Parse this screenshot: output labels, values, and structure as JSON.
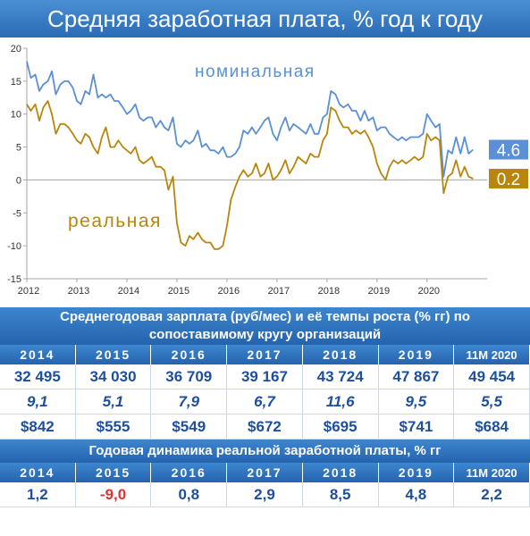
{
  "title": "Средняя заработная плата, % год к году",
  "chart_data": {
    "type": "line",
    "title": "Средняя заработная плата, % год к году",
    "ylim": [
      -15,
      20
    ],
    "yticks": [
      -15,
      -10,
      -5,
      0,
      5,
      10,
      15,
      20
    ],
    "xlim": [
      2012,
      2021.2
    ],
    "xticks": [
      2012,
      2013,
      2014,
      2015,
      2016,
      2017,
      2018,
      2019,
      2020
    ],
    "grid": false,
    "series": [
      {
        "name": "номинальная",
        "color": "#5b8fd6",
        "end_label": "4.6",
        "x": [
          2012.0,
          2012.08,
          2012.17,
          2012.25,
          2012.33,
          2012.42,
          2012.5,
          2012.58,
          2012.67,
          2012.75,
          2012.83,
          2012.92,
          2013.0,
          2013.08,
          2013.17,
          2013.25,
          2013.33,
          2013.42,
          2013.5,
          2013.58,
          2013.67,
          2013.75,
          2013.83,
          2013.92,
          2014.0,
          2014.08,
          2014.17,
          2014.25,
          2014.33,
          2014.42,
          2014.5,
          2014.58,
          2014.67,
          2014.75,
          2014.83,
          2014.92,
          2015.0,
          2015.08,
          2015.17,
          2015.25,
          2015.33,
          2015.42,
          2015.5,
          2015.58,
          2015.67,
          2015.75,
          2015.83,
          2015.92,
          2016.0,
          2016.08,
          2016.17,
          2016.25,
          2016.33,
          2016.42,
          2016.5,
          2016.58,
          2016.67,
          2016.75,
          2016.83,
          2016.92,
          2017.0,
          2017.08,
          2017.17,
          2017.25,
          2017.33,
          2017.42,
          2017.5,
          2017.58,
          2017.67,
          2017.75,
          2017.83,
          2017.92,
          2018.0,
          2018.08,
          2018.17,
          2018.25,
          2018.33,
          2018.42,
          2018.5,
          2018.58,
          2018.67,
          2018.75,
          2018.83,
          2018.92,
          2019.0,
          2019.08,
          2019.17,
          2019.25,
          2019.33,
          2019.42,
          2019.5,
          2019.58,
          2019.67,
          2019.75,
          2019.83,
          2019.92,
          2020.0,
          2020.08,
          2020.17,
          2020.25,
          2020.33,
          2020.42,
          2020.5,
          2020.58,
          2020.67,
          2020.75,
          2020.83,
          2020.92
        ],
        "y": [
          18.0,
          15.5,
          16.0,
          13.5,
          14.5,
          15.0,
          16.5,
          13.0,
          14.5,
          15.0,
          15.0,
          14.0,
          12.0,
          11.5,
          13.5,
          13.0,
          16.0,
          12.5,
          13.0,
          12.5,
          13.0,
          12.0,
          12.0,
          11.0,
          10.0,
          10.5,
          11.5,
          9.5,
          9.0,
          9.5,
          9.5,
          8.0,
          9.0,
          8.0,
          7.5,
          9.5,
          5.5,
          5.0,
          6.0,
          5.5,
          6.0,
          7.5,
          5.0,
          5.5,
          4.5,
          4.5,
          4.0,
          5.0,
          3.5,
          3.5,
          4.0,
          5.0,
          7.5,
          7.0,
          8.0,
          7.0,
          8.0,
          9.0,
          9.5,
          7.0,
          6.0,
          8.0,
          9.5,
          7.5,
          8.5,
          8.0,
          7.5,
          7.0,
          8.5,
          7.0,
          7.0,
          9.5,
          10.0,
          13.5,
          13.0,
          11.5,
          11.0,
          11.5,
          10.5,
          10.5,
          9.0,
          10.5,
          9.0,
          9.5,
          7.5,
          8.0,
          8.0,
          7.0,
          6.5,
          6.0,
          6.5,
          6.0,
          6.5,
          6.5,
          6.5,
          7.0,
          10.0,
          9.0,
          8.0,
          8.5,
          0.5,
          4.5,
          4.0,
          6.5,
          4.0,
          6.5,
          4.0,
          4.6
        ]
      },
      {
        "name": "реальная",
        "color": "#b8860b",
        "end_label": "0.2",
        "x": [
          2012.0,
          2012.08,
          2012.17,
          2012.25,
          2012.33,
          2012.42,
          2012.5,
          2012.58,
          2012.67,
          2012.75,
          2012.83,
          2012.92,
          2013.0,
          2013.08,
          2013.17,
          2013.25,
          2013.33,
          2013.42,
          2013.5,
          2013.58,
          2013.67,
          2013.75,
          2013.83,
          2013.92,
          2014.0,
          2014.08,
          2014.17,
          2014.25,
          2014.33,
          2014.42,
          2014.5,
          2014.58,
          2014.67,
          2014.75,
          2014.83,
          2014.92,
          2015.0,
          2015.08,
          2015.17,
          2015.25,
          2015.33,
          2015.42,
          2015.5,
          2015.58,
          2015.67,
          2015.75,
          2015.83,
          2015.92,
          2016.0,
          2016.08,
          2016.17,
          2016.25,
          2016.33,
          2016.42,
          2016.5,
          2016.58,
          2016.67,
          2016.75,
          2016.83,
          2016.92,
          2017.0,
          2017.08,
          2017.17,
          2017.25,
          2017.33,
          2017.42,
          2017.5,
          2017.58,
          2017.67,
          2017.75,
          2017.83,
          2017.92,
          2018.0,
          2018.08,
          2018.17,
          2018.25,
          2018.33,
          2018.42,
          2018.5,
          2018.58,
          2018.67,
          2018.75,
          2018.83,
          2018.92,
          2019.0,
          2019.08,
          2019.17,
          2019.25,
          2019.33,
          2019.42,
          2019.5,
          2019.58,
          2019.67,
          2019.75,
          2019.83,
          2019.92,
          2020.0,
          2020.08,
          2020.17,
          2020.25,
          2020.33,
          2020.42,
          2020.5,
          2020.58,
          2020.67,
          2020.75,
          2020.83,
          2020.92
        ],
        "y": [
          11.5,
          10.5,
          11.5,
          9.0,
          11.0,
          12.0,
          10.0,
          7.0,
          8.5,
          8.5,
          8.0,
          7.0,
          6.0,
          5.5,
          7.0,
          6.5,
          5.0,
          4.0,
          6.5,
          8.0,
          5.0,
          5.0,
          6.0,
          5.0,
          4.5,
          4.0,
          5.0,
          3.0,
          2.5,
          3.0,
          3.5,
          2.0,
          2.0,
          1.5,
          -1.5,
          0.5,
          -6.5,
          -9.5,
          -10.0,
          -8.5,
          -9.0,
          -8.0,
          -9.0,
          -9.5,
          -9.5,
          -10.5,
          -10.5,
          -10.0,
          -7.0,
          -3.0,
          -1.0,
          0.5,
          1.5,
          0.5,
          1.0,
          2.5,
          0.5,
          1.0,
          2.5,
          0.0,
          0.5,
          1.5,
          3.0,
          1.0,
          2.0,
          3.5,
          3.0,
          2.5,
          4.0,
          3.5,
          3.5,
          6.0,
          7.0,
          11.0,
          10.5,
          9.0,
          8.0,
          8.0,
          7.0,
          7.5,
          7.0,
          7.5,
          6.5,
          5.0,
          2.5,
          1.0,
          0.0,
          2.0,
          3.0,
          2.5,
          3.0,
          2.5,
          3.0,
          3.5,
          3.0,
          3.5,
          7.0,
          6.0,
          6.5,
          6.0,
          -2.0,
          0.5,
          1.0,
          3.0,
          0.5,
          2.0,
          0.5,
          0.2
        ]
      }
    ]
  },
  "table1": {
    "title_line1": "Среднегодовая зарплата (руб/мес) и её темпы роста (% гг)  по",
    "title_line2": "сопоставимому кругу организаций",
    "years": [
      "2014",
      "2015",
      "2016",
      "2017",
      "2018",
      "2019",
      "11М 2020"
    ],
    "rub": [
      "32 495",
      "34 030",
      "36 709",
      "39 167",
      "43 724",
      "47 867",
      "49 454"
    ],
    "growth": [
      "9,1",
      "5,1",
      "7,9",
      "6,7",
      "11,6",
      "9,5",
      "5,5"
    ],
    "usd": [
      "$842",
      "$555",
      "$549",
      "$672",
      "$695",
      "$741",
      "$684"
    ]
  },
  "table2": {
    "title": "Годовая динамика реальной заработной платы, % гг",
    "years": [
      "2014",
      "2015",
      "2016",
      "2017",
      "2018",
      "2019",
      "11М 2020"
    ],
    "values": [
      "1,2",
      "-9,0",
      "0,8",
      "2,9",
      "8,5",
      "4,8",
      "2,2"
    ]
  }
}
